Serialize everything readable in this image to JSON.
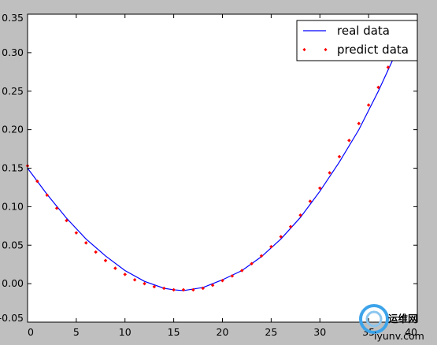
{
  "chart_data": {
    "type": "line",
    "xlim": [
      0,
      40
    ],
    "ylim": [
      -0.05,
      0.35
    ],
    "x_ticks": [
      0,
      5,
      10,
      15,
      20,
      25,
      30,
      35,
      40
    ],
    "y_ticks": [
      -0.05,
      0.0,
      0.05,
      0.1,
      0.15,
      0.2,
      0.25,
      0.3,
      0.35
    ],
    "x_tick_labels": [
      "0",
      "5",
      "10",
      "15",
      "20",
      "25",
      "30",
      "35",
      "40"
    ],
    "y_tick_labels": [
      "-0.05",
      "0.00",
      "0.05",
      "0.10",
      "0.15",
      "0.20",
      "0.25",
      "0.30",
      "0.35"
    ],
    "grid": false,
    "legend_position": "top-right",
    "series": [
      {
        "name": "real data",
        "style": "line",
        "color": "#0000ff",
        "x": [
          0,
          2,
          4,
          6,
          8,
          10,
          12,
          14,
          15,
          16,
          18,
          20,
          22,
          24,
          26,
          28,
          30,
          32,
          34,
          36,
          38,
          39
        ],
        "y": [
          0.15,
          0.116,
          0.085,
          0.058,
          0.036,
          0.017,
          0.003,
          -0.006,
          -0.008,
          -0.009,
          -0.005,
          0.005,
          0.017,
          0.035,
          0.058,
          0.086,
          0.12,
          0.158,
          0.2,
          0.25,
          0.305,
          0.34
        ]
      },
      {
        "name": "predict data",
        "style": "points",
        "color": "#ff0000",
        "x": [
          0,
          1,
          2,
          3,
          4,
          5,
          6,
          7,
          8,
          9,
          10,
          11,
          12,
          13,
          14,
          15,
          16,
          17,
          18,
          19,
          20,
          21,
          22,
          23,
          24,
          25,
          26,
          27,
          28,
          29,
          30,
          31,
          32,
          33,
          34,
          35,
          36,
          37,
          38
        ],
        "y": [
          0.153,
          0.133,
          0.115,
          0.098,
          0.082,
          0.066,
          0.053,
          0.041,
          0.03,
          0.02,
          0.012,
          0.005,
          0.0,
          -0.004,
          -0.006,
          -0.008,
          -0.008,
          -0.008,
          -0.006,
          -0.002,
          0.004,
          0.01,
          0.017,
          0.026,
          0.036,
          0.048,
          0.061,
          0.074,
          0.089,
          0.107,
          0.124,
          0.144,
          0.165,
          0.186,
          0.208,
          0.232,
          0.255,
          0.281,
          0.306
        ]
      }
    ]
  },
  "watermark": {
    "title": "运维网",
    "url": "iyunv.com"
  }
}
